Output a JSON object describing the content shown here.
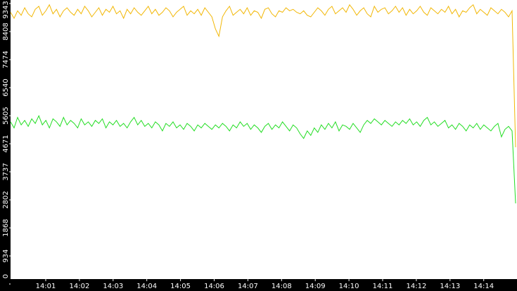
{
  "chart_data": {
    "type": "line",
    "ylim": [
      0,
      9343
    ],
    "yticks": [
      0,
      934,
      1868,
      2802,
      3737,
      4671,
      5605,
      6540,
      7474,
      8408,
      9343
    ],
    "xtick_labels": [
      "14:01",
      "14:02",
      "14:03",
      "14:04",
      "14:05",
      "14:06",
      "14:07",
      "14:08",
      "14:09",
      "14:10",
      "14:11",
      "14:12",
      "14:13",
      "14:14"
    ],
    "series": [
      {
        "color": "#f2b705",
        "values": [
          9050,
          8850,
          9100,
          8950,
          9200,
          9000,
          8900,
          9150,
          9250,
          8950,
          9100,
          9300,
          9000,
          9150,
          8900,
          9100,
          9200,
          9050,
          8950,
          9150,
          9000,
          9250,
          9100,
          8900,
          9050,
          9200,
          8950,
          9150,
          9050,
          9250,
          9000,
          9100,
          8850,
          9150,
          9000,
          9200,
          9050,
          8950,
          9100,
          9250,
          9000,
          9150,
          8950,
          9050,
          9200,
          9100,
          8900,
          9050,
          9150,
          9250,
          8950,
          9100,
          9000,
          9150,
          8950,
          9200,
          9050,
          8900,
          8500,
          8250,
          8900,
          9100,
          9250,
          8950,
          9050,
          9150,
          9000,
          9200,
          8950,
          9100,
          9050,
          8850,
          9150,
          9200,
          9000,
          8900,
          9100,
          9050,
          9200,
          9100,
          9150,
          9050,
          9000,
          9100,
          8950,
          8900,
          9050,
          9200,
          9100,
          8950,
          9150,
          9250,
          9000,
          9100,
          9200,
          9050,
          9300,
          9150,
          8950,
          9100,
          9200,
          9000,
          8900,
          9250,
          9050,
          9150,
          9200,
          9000,
          9100,
          9250,
          9050,
          9200,
          8950,
          9150,
          9000,
          9100,
          9250,
          9050,
          8950,
          9200,
          9100,
          9000,
          9150,
          9050,
          9250,
          9000,
          9150,
          8900,
          9100,
          9050,
          9200,
          9300,
          9000,
          9150,
          9050,
          8950,
          9200,
          9100,
          9000,
          9150,
          9050,
          8900,
          9100,
          4554
        ]
      },
      {
        "color": "#22dd22",
        "values": [
          5400,
          5200,
          5550,
          5300,
          5450,
          5250,
          5500,
          5350,
          5600,
          5300,
          5450,
          5200,
          5500,
          5400,
          5250,
          5550,
          5300,
          5450,
          5350,
          5200,
          5500,
          5300,
          5400,
          5250,
          5450,
          5350,
          5500,
          5200,
          5400,
          5300,
          5450,
          5250,
          5350,
          5200,
          5400,
          5550,
          5300,
          5450,
          5250,
          5350,
          5200,
          5400,
          5300,
          5100,
          5350,
          5250,
          5400,
          5200,
          5300,
          5150,
          5350,
          5250,
          5100,
          5300,
          5200,
          5350,
          5250,
          5150,
          5300,
          5200,
          5350,
          5250,
          5100,
          5300,
          5200,
          5400,
          5250,
          5350,
          5150,
          5300,
          5200,
          5050,
          5250,
          5350,
          5150,
          5300,
          5200,
          5400,
          5250,
          5100,
          5300,
          5200,
          5000,
          4850,
          5100,
          4950,
          5200,
          5050,
          5300,
          5150,
          5350,
          5200,
          5400,
          5100,
          5300,
          5250,
          5150,
          5350,
          5200,
          5050,
          5300,
          5450,
          5350,
          5500,
          5400,
          5300,
          5450,
          5350,
          5250,
          5400,
          5300,
          5450,
          5350,
          5500,
          5300,
          5400,
          5250,
          5450,
          5550,
          5300,
          5400,
          5250,
          5350,
          5450,
          5200,
          5300,
          5150,
          5350,
          5250,
          5100,
          5300,
          5200,
          5350,
          5150,
          5300,
          5200,
          5100,
          5250,
          5350,
          4900,
          5150,
          5250,
          5100,
          2686
        ]
      }
    ]
  }
}
